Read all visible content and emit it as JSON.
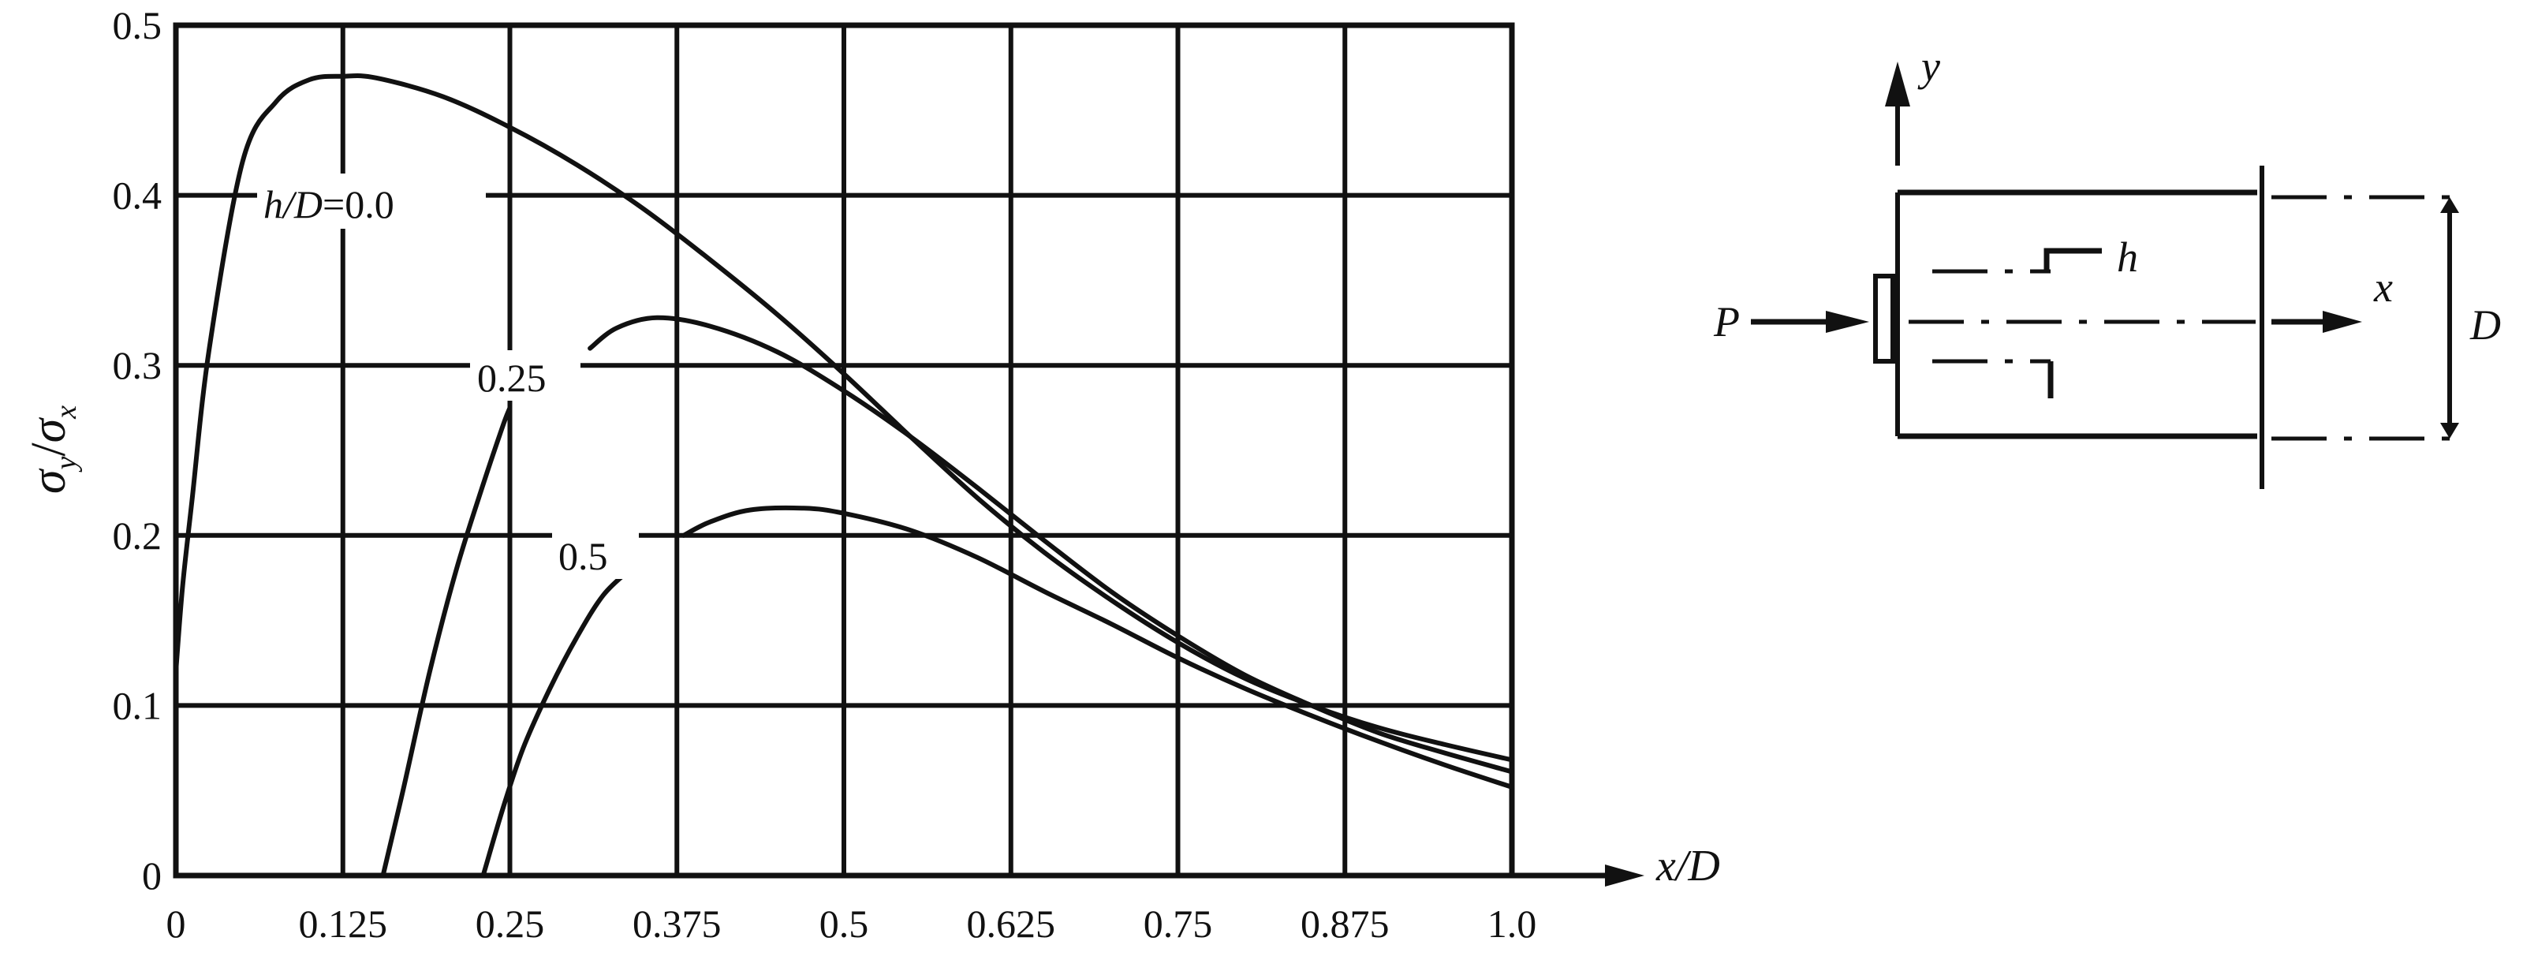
{
  "chart_data": {
    "type": "line",
    "xlabel": "x/D",
    "ylabel_sym": "σ",
    "ylabel_num_sub": "y",
    "ylabel_den_sub": "x",
    "xlim": [
      0,
      1.0
    ],
    "ylim": [
      0,
      0.5
    ],
    "xticks": [
      "0",
      "0.125",
      "0.25",
      "0.375",
      "0.5",
      "0.625",
      "0.75",
      "0.875",
      "1.0"
    ],
    "yticks": [
      "0",
      "0.1",
      "0.2",
      "0.3",
      "0.4",
      "0.5"
    ],
    "grid": true,
    "series": [
      {
        "name": "h/D=0.0",
        "label_prefix": "h/D",
        "label_value": "=0.0",
        "segments": [
          [
            [
              0.0,
              0.12
            ],
            [
              0.005,
              0.17
            ],
            [
              0.012,
              0.22
            ],
            [
              0.025,
              0.31
            ],
            [
              0.05,
              0.42
            ],
            [
              0.075,
              0.455
            ],
            [
              0.1,
              0.468
            ],
            [
              0.125,
              0.47
            ],
            [
              0.15,
              0.469
            ],
            [
              0.2,
              0.458
            ],
            [
              0.25,
              0.44
            ],
            [
              0.3,
              0.418
            ],
            [
              0.35,
              0.392
            ],
            [
              0.4,
              0.362
            ],
            [
              0.45,
              0.33
            ],
            [
              0.5,
              0.295
            ],
            [
              0.55,
              0.258
            ],
            [
              0.6,
              0.222
            ],
            [
              0.65,
              0.19
            ],
            [
              0.7,
              0.162
            ],
            [
              0.75,
              0.137
            ],
            [
              0.8,
              0.116
            ],
            [
              0.85,
              0.1
            ],
            [
              0.9,
              0.087
            ],
            [
              0.95,
              0.077
            ],
            [
              1.0,
              0.068
            ]
          ]
        ]
      },
      {
        "name": "0.25",
        "segments": [
          [
            [
              0.155,
              0.0
            ],
            [
              0.17,
              0.05
            ],
            [
              0.19,
              0.12
            ],
            [
              0.21,
              0.18
            ],
            [
              0.23,
              0.23
            ],
            [
              0.245,
              0.265
            ],
            [
              0.25,
              0.275
            ]
          ],
          [
            [
              0.31,
              0.31
            ],
            [
              0.33,
              0.322
            ],
            [
              0.36,
              0.328
            ],
            [
              0.4,
              0.323
            ],
            [
              0.45,
              0.308
            ],
            [
              0.5,
              0.285
            ],
            [
              0.55,
              0.258
            ],
            [
              0.6,
              0.228
            ],
            [
              0.65,
              0.197
            ],
            [
              0.7,
              0.167
            ],
            [
              0.75,
              0.141
            ],
            [
              0.8,
              0.118
            ],
            [
              0.85,
              0.1
            ],
            [
              0.9,
              0.084
            ],
            [
              0.95,
              0.072
            ],
            [
              1.0,
              0.061
            ]
          ]
        ]
      },
      {
        "name": "0.5",
        "segments": [
          [
            [
              0.23,
              0.0
            ],
            [
              0.245,
              0.04
            ],
            [
              0.26,
              0.075
            ],
            [
              0.28,
              0.11
            ],
            [
              0.3,
              0.14
            ],
            [
              0.32,
              0.165
            ],
            [
              0.34,
              0.18
            ]
          ],
          [
            [
              0.38,
              0.2
            ],
            [
              0.4,
              0.208
            ],
            [
              0.43,
              0.215
            ],
            [
              0.47,
              0.216
            ],
            [
              0.5,
              0.213
            ],
            [
              0.55,
              0.203
            ],
            [
              0.6,
              0.187
            ],
            [
              0.65,
              0.167
            ],
            [
              0.7,
              0.148
            ],
            [
              0.75,
              0.128
            ],
            [
              0.8,
              0.11
            ],
            [
              0.85,
              0.094
            ],
            [
              0.9,
              0.079
            ],
            [
              0.95,
              0.065
            ],
            [
              1.0,
              0.052
            ]
          ]
        ]
      }
    ]
  },
  "diagram": {
    "axis_y": "y",
    "axis_x": "x",
    "load": "P",
    "depth": "h",
    "width": "D"
  }
}
